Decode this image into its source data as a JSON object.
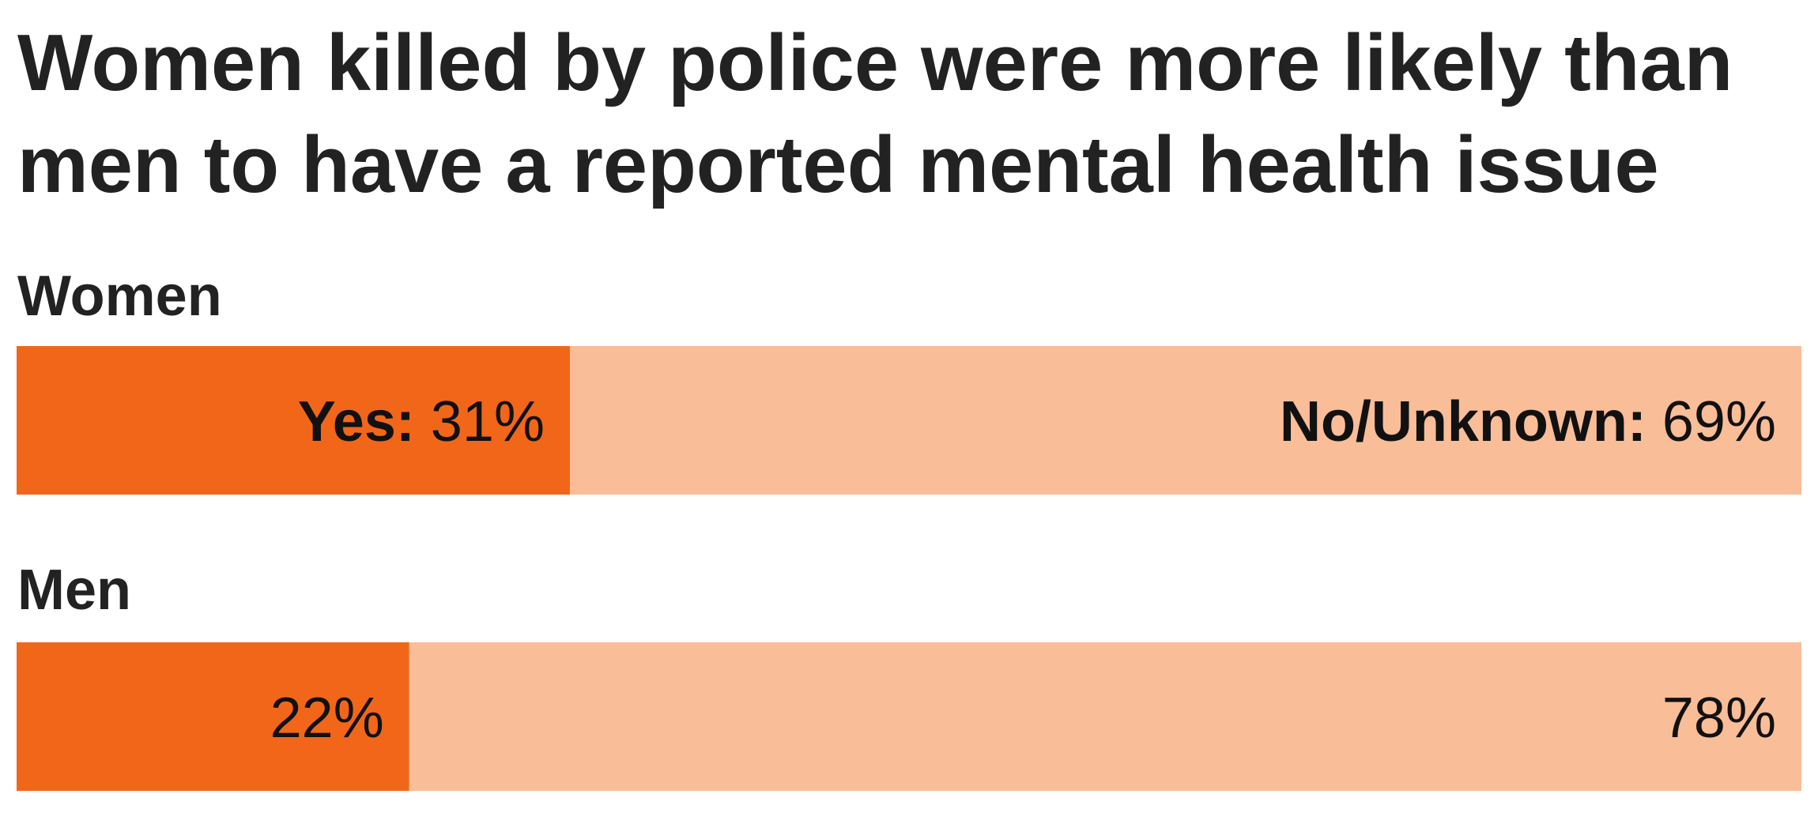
{
  "chart_data": {
    "type": "bar",
    "orientation": "horizontal",
    "stacked": true,
    "normalized_100": true,
    "title": "Women killed by police were more likely than men to have a reported mental health issue",
    "categories": [
      "Women",
      "Men"
    ],
    "series": [
      {
        "name": "Yes",
        "values": [
          31,
          22
        ],
        "value_labels": [
          "31%",
          "22%"
        ],
        "color": "#f26619"
      },
      {
        "name": "No/Unknown",
        "values": [
          69,
          78
        ],
        "value_labels": [
          "69%",
          "78%"
        ],
        "color": "#f9bd98"
      }
    ],
    "series_labels": {
      "Yes": "Yes:",
      "No/Unknown": "No/Unknown:"
    },
    "xlim": [
      0,
      100
    ],
    "grid": false,
    "legend": "inline labels on first bar"
  }
}
